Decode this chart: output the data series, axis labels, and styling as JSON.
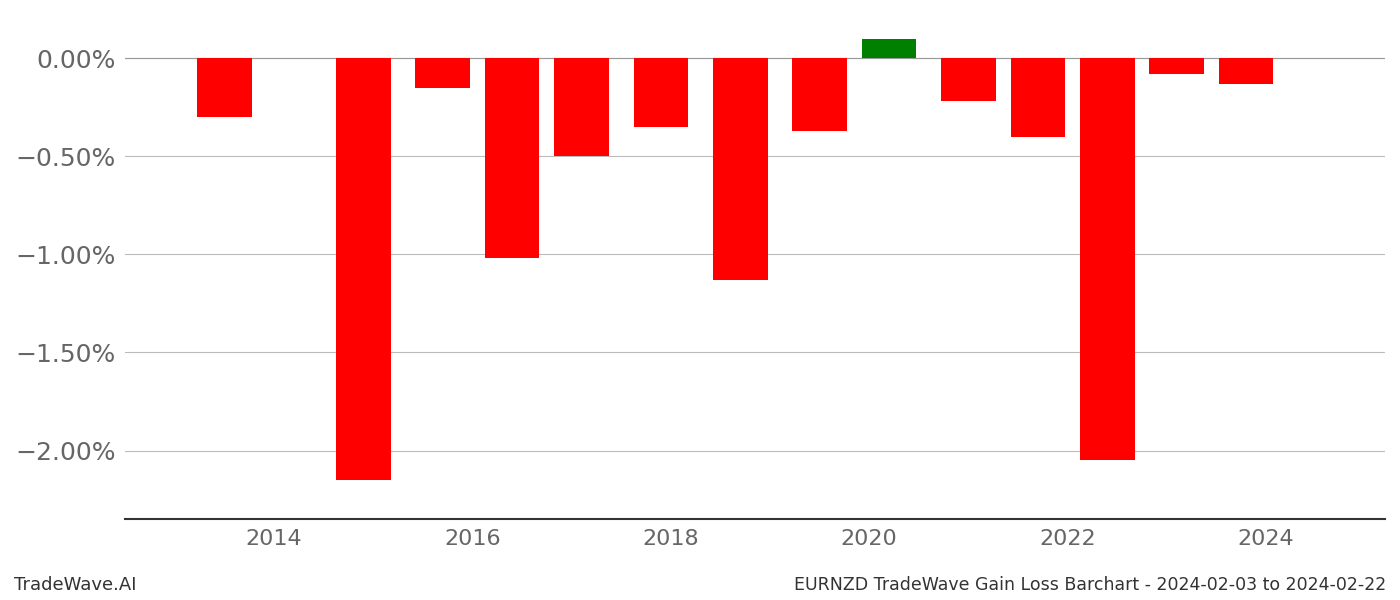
{
  "x_positions": [
    2013.5,
    2014.9,
    2015.7,
    2016.4,
    2017.1,
    2017.9,
    2018.7,
    2019.5,
    2020.2,
    2021.0,
    2021.7,
    2022.4,
    2023.1,
    2023.8
  ],
  "values": [
    -0.3,
    -2.15,
    -0.15,
    -1.02,
    -0.5,
    -0.35,
    -1.13,
    -0.37,
    0.1,
    -0.22,
    -0.4,
    -2.05,
    -0.08,
    -0.13
  ],
  "colors": [
    "#ff0000",
    "#ff0000",
    "#ff0000",
    "#ff0000",
    "#ff0000",
    "#ff0000",
    "#ff0000",
    "#ff0000",
    "#008000",
    "#ff0000",
    "#ff0000",
    "#ff0000",
    "#ff0000",
    "#ff0000"
  ],
  "bar_width": 0.55,
  "title": "EURNZD TradeWave Gain Loss Barchart - 2024-02-03 to 2024-02-22",
  "watermark": "TradeWave.AI",
  "xlim": [
    2012.5,
    2025.2
  ],
  "ylim": [
    -2.35,
    0.22
  ],
  "yticks": [
    0.0,
    -0.5,
    -1.0,
    -1.5,
    -2.0
  ],
  "ytick_labels": [
    "0.00%",
    "−0.50%",
    "−1.00%",
    "−1.50%",
    "−2.00%"
  ],
  "xticks": [
    2014,
    2016,
    2018,
    2020,
    2022,
    2024
  ],
  "background_color": "#ffffff",
  "grid_color": "#bbbbbb",
  "title_fontsize": 12.5,
  "watermark_fontsize": 13,
  "ytick_fontsize": 18,
  "xtick_fontsize": 16
}
